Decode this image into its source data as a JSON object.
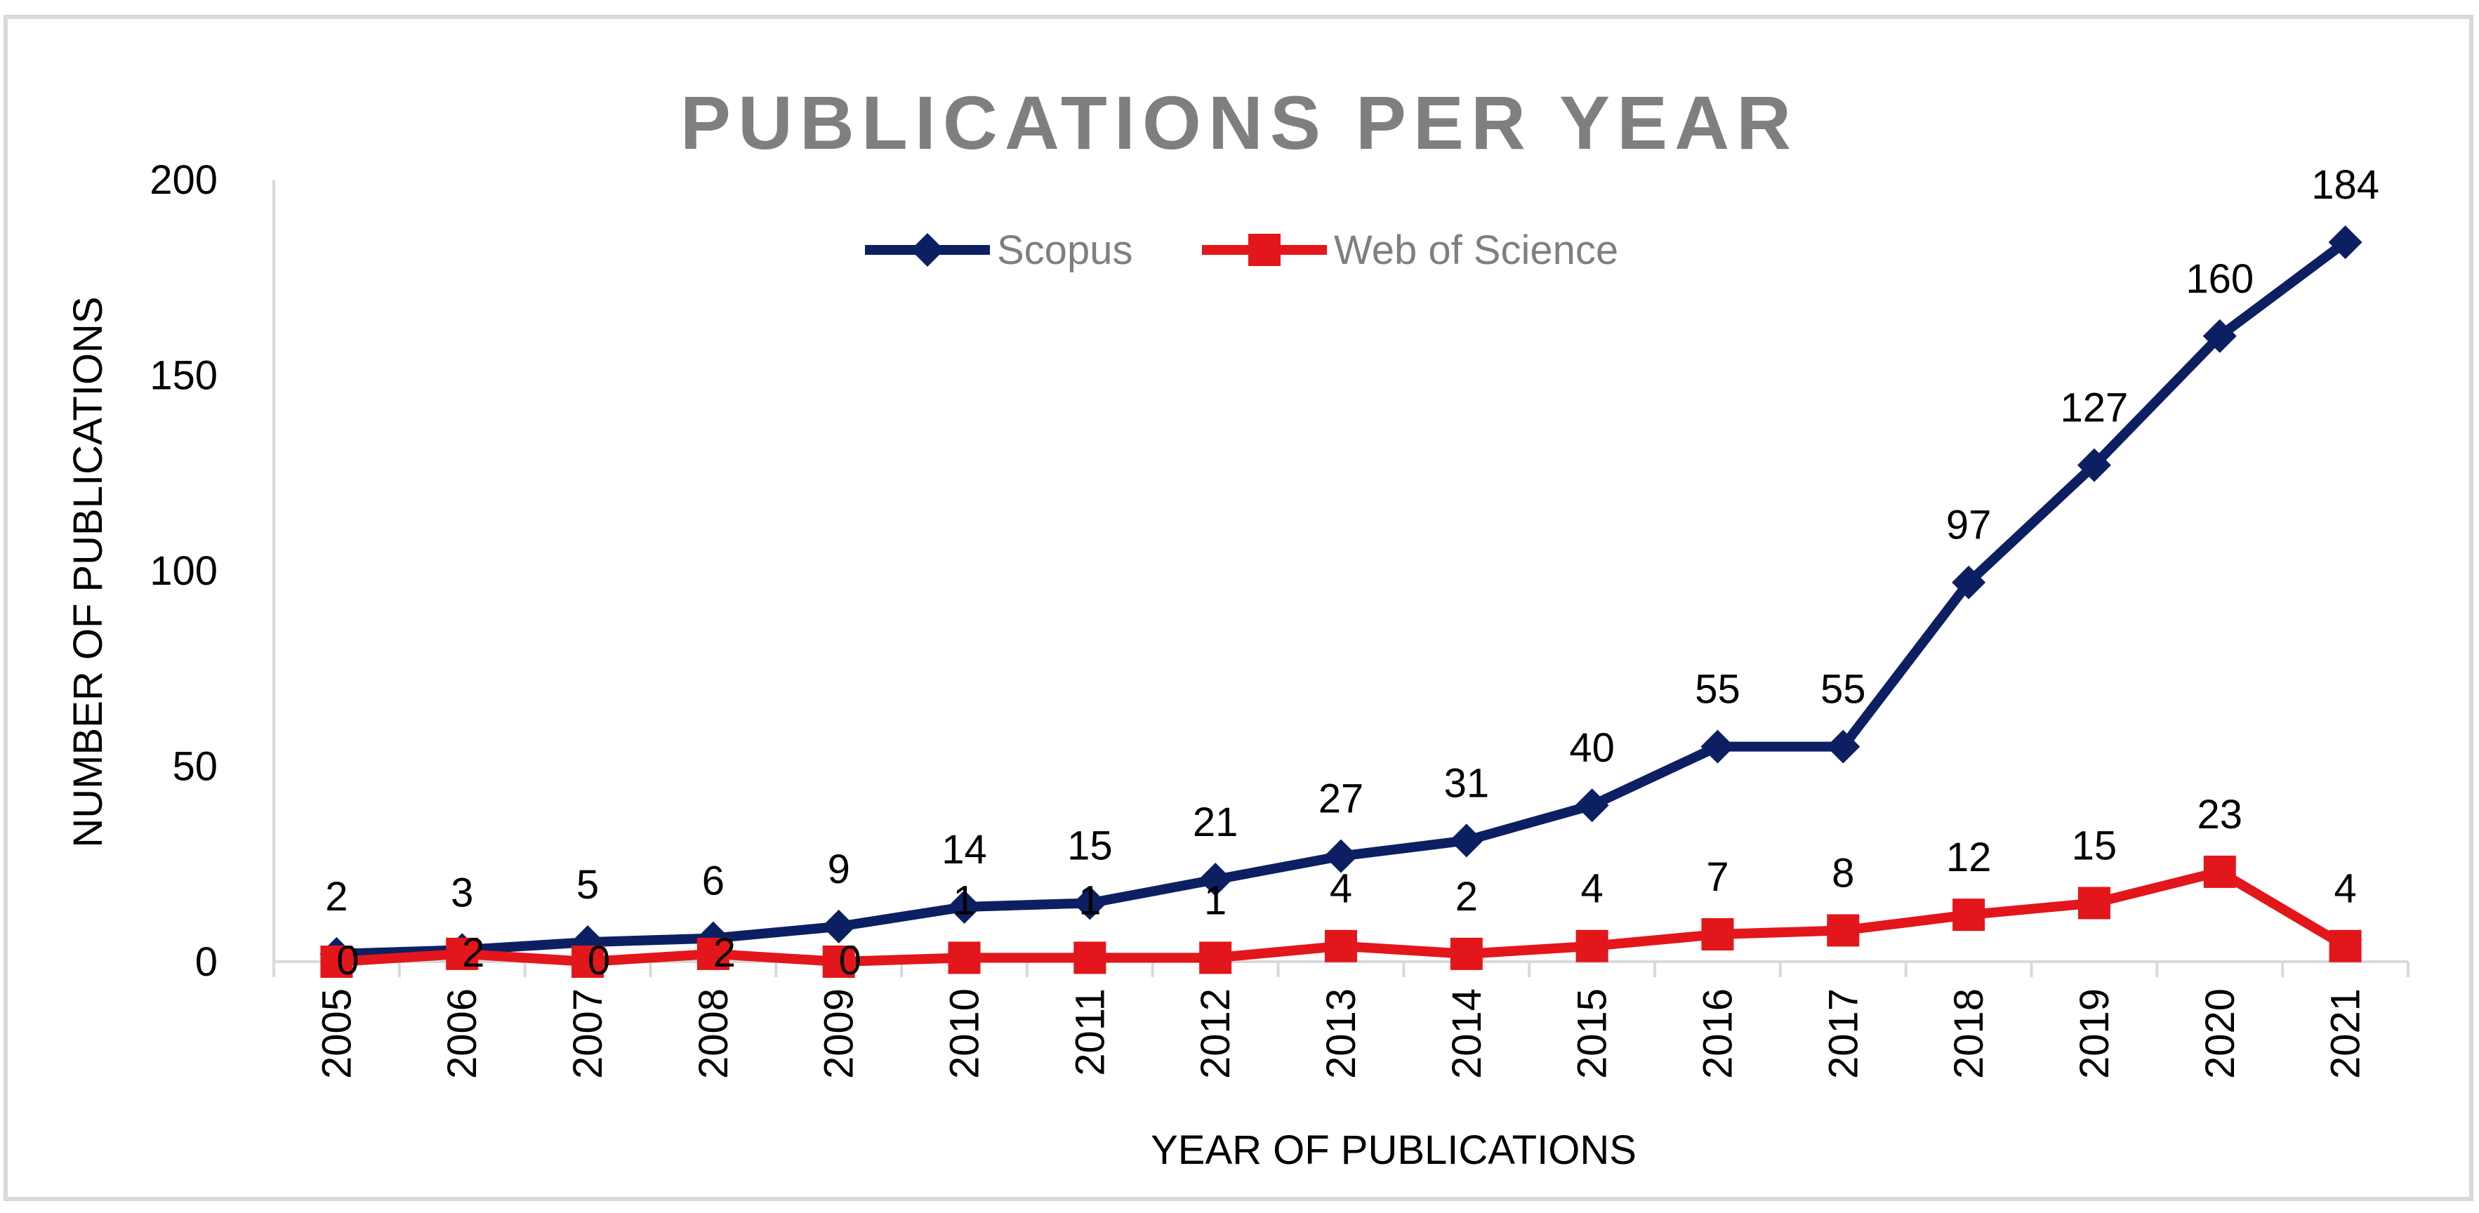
{
  "chart_data": {
    "type": "line",
    "title": "PUBLICATIONS PER YEAR",
    "xlabel": "YEAR OF PUBLICATIONS",
    "ylabel": "NUMBER OF PUBLICATIONS",
    "categories": [
      "2005",
      "2006",
      "2007",
      "2008",
      "2009",
      "2010",
      "2011",
      "2012",
      "2013",
      "2014",
      "2015",
      "2016",
      "2017",
      "2018",
      "2019",
      "2020",
      "2021"
    ],
    "ylim": [
      0,
      200
    ],
    "yticks": [
      0,
      50,
      100,
      150,
      200
    ],
    "legend_position": "top-center",
    "grid": false,
    "series": [
      {
        "name": "Scopus",
        "color": "#0d1f63",
        "marker": "diamond",
        "values": [
          2,
          3,
          5,
          6,
          9,
          14,
          15,
          21,
          27,
          31,
          40,
          55,
          55,
          97,
          127,
          160,
          184
        ]
      },
      {
        "name": "Web of Science",
        "color": "#e3161b",
        "marker": "square",
        "values": [
          0,
          2,
          0,
          2,
          0,
          1,
          1,
          1,
          4,
          2,
          4,
          7,
          8,
          12,
          15,
          23,
          4
        ]
      }
    ]
  },
  "colors": {
    "title": "#7f7f7f",
    "axis": "#d9d9d9",
    "frame": "#d9d9d9"
  }
}
